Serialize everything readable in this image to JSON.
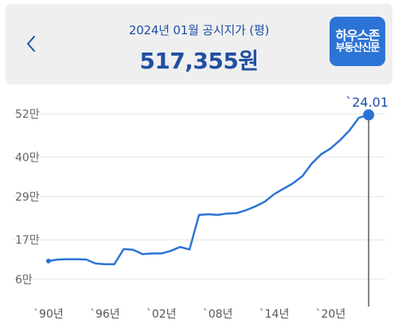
{
  "header": {
    "title": "2024년 01월 공시지가 (평)",
    "price": "517,355원",
    "back_label": "‹",
    "logo_line1": "하우스존",
    "logo_line2": "부동산신문"
  },
  "colors": {
    "accent": "#1f4fa3",
    "line": "#2c73d6",
    "logo_bg": "#2c73d6"
  },
  "chart_data": {
    "type": "line",
    "x_tick_labels": [
      "`90년",
      "`96년",
      "`02년",
      "`08년",
      "`14년",
      "`20년"
    ],
    "x_tick_years": [
      1990,
      1996,
      2002,
      2008,
      2014,
      2020
    ],
    "y_tick_labels": [
      "6만",
      "17만",
      "29만",
      "40만",
      "52만"
    ],
    "y_tick_values": [
      60000,
      170000,
      290000,
      400000,
      520000
    ],
    "ylim": [
      0,
      560000
    ],
    "xlim": [
      1989.5,
      2025.3
    ],
    "grid": true,
    "end_label": "`24.01",
    "series": [
      {
        "x": [
          1990,
          1991,
          1992,
          1993,
          1994,
          1995,
          1996,
          1997,
          1998,
          1999,
          2000,
          2001,
          2002,
          2003,
          2004,
          2005,
          2006,
          2007,
          2008,
          2009,
          2010,
          2011,
          2012,
          2013,
          2014,
          2015,
          2016,
          2017,
          2018,
          2019,
          2020,
          2021,
          2022,
          2023,
          2024.04
        ],
        "y": [
          111000,
          115000,
          116000,
          116000,
          115000,
          104000,
          102000,
          102000,
          144000,
          142000,
          130000,
          132000,
          132000,
          139000,
          150000,
          143000,
          239000,
          241000,
          239000,
          243000,
          244000,
          252000,
          263000,
          276000,
          297000,
          312000,
          327000,
          347000,
          382000,
          408000,
          424000,
          447000,
          474000,
          509000,
          517355
        ]
      }
    ]
  }
}
